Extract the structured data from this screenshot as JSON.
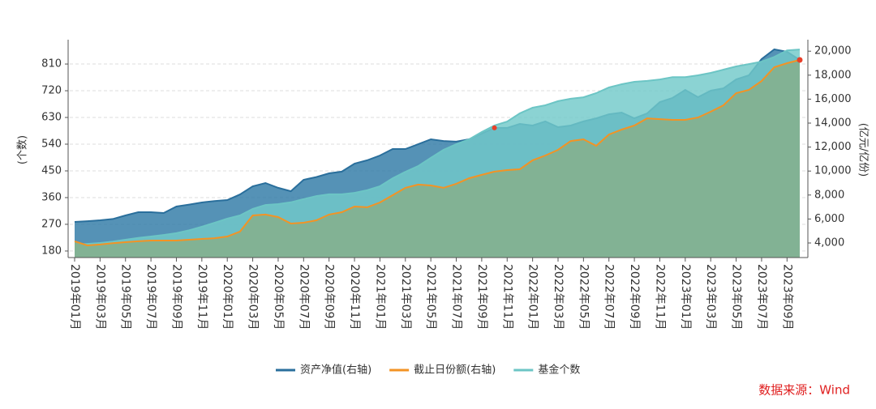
{
  "chart_data": {
    "type": "area",
    "categories": [
      "2019年01月",
      null,
      "2019年03月",
      null,
      "2019年05月",
      null,
      "2019年07月",
      null,
      "2019年09月",
      null,
      "2019年11月",
      null,
      "2020年01月",
      null,
      "2020年03月",
      null,
      "2020年05月",
      null,
      "2020年07月",
      null,
      "2020年09月",
      null,
      "2020年11月",
      null,
      "2021年01月",
      null,
      "2021年03月",
      null,
      "2021年05月",
      null,
      "2021年07月",
      null,
      "2021年09月",
      null,
      "2021年11月",
      null,
      "2022年01月",
      null,
      "2022年03月",
      null,
      "2022年05月",
      null,
      "2022年07月",
      null,
      "2022年09月",
      null,
      "2022年11月",
      null,
      "2023年01月",
      null,
      "2023年03月",
      null,
      "2023年05月",
      null,
      "2023年07月",
      null,
      "2023年09月",
      null
    ],
    "series": [
      {
        "name": "资产净值(右轴)",
        "color": "#2a6f9c",
        "fill": "#2f7aa6",
        "axis": "y2",
        "values": [
          5760,
          5820,
          5890,
          6000,
          6300,
          6570,
          6570,
          6500,
          7040,
          7200,
          7380,
          7500,
          7580,
          8050,
          8730,
          9000,
          8600,
          8320,
          9270,
          9500,
          9810,
          9950,
          10620,
          10900,
          11300,
          11840,
          11840,
          12240,
          12650,
          12510,
          12450,
          12650,
          13120,
          13600,
          13600,
          13930,
          13800,
          14140,
          13660,
          13800,
          14140,
          14400,
          14740,
          14880,
          14400,
          14810,
          15760,
          16100,
          16770,
          16160,
          16700,
          16900,
          17650,
          17990,
          19340,
          20150,
          19950,
          19270
        ]
      },
      {
        "name": "截止日份额(右轴)",
        "color": "#f39324",
        "fill": "#84b191",
        "axis": "y2",
        "values": [
          4140,
          3800,
          3870,
          3990,
          4070,
          4140,
          4200,
          4200,
          4200,
          4270,
          4340,
          4400,
          4540,
          4950,
          6300,
          6370,
          6160,
          5620,
          5690,
          5890,
          6370,
          6570,
          7040,
          6980,
          7380,
          7990,
          8600,
          8870,
          8800,
          8600,
          8940,
          9400,
          9680,
          9950,
          10080,
          10150,
          10900,
          11300,
          11770,
          12510,
          12650,
          12110,
          13050,
          13460,
          13800,
          14400,
          14330,
          14270,
          14270,
          14470,
          14950,
          15490,
          16500,
          16770,
          17510,
          18660,
          19000,
          19270
        ]
      },
      {
        "name": "基金个数",
        "color": "#6cc5c5",
        "fill": "#72c9c9",
        "values": [
          202,
          204,
          207,
          212,
          218,
          224,
          229,
          234,
          240,
          250,
          262,
          275,
          289,
          300,
          322,
          335,
          338,
          344,
          355,
          365,
          371,
          371,
          376,
          385,
          398,
          425,
          447,
          466,
          494,
          521,
          540,
          556,
          581,
          603,
          616,
          644,
          663,
          671,
          685,
          693,
          698,
          712,
          731,
          742,
          750,
          753,
          758,
          766,
          766,
          772,
          780,
          791,
          802,
          810,
          818,
          834,
          856,
          859
        ]
      }
    ],
    "ylabel": "(个数)",
    "y2label": "(亿元/亿份)",
    "ylim": [
      158,
      892
    ],
    "yticks": [
      180,
      270,
      360,
      450,
      540,
      630,
      720,
      810
    ],
    "y2lim": [
      2784,
      20960
    ],
    "y2ticks": [
      {
        "value": 4000,
        "label": "4,000"
      },
      {
        "value": 6000,
        "label": "6,000"
      },
      {
        "value": 8000,
        "label": "8,000"
      },
      {
        "value": 10000,
        "label": "10,000"
      },
      {
        "value": 12000,
        "label": "12,000"
      },
      {
        "value": 14000,
        "label": "14,000"
      },
      {
        "value": 16000,
        "label": "16,000"
      },
      {
        "value": 18000,
        "label": "18,000"
      },
      {
        "value": 20000,
        "label": "20,000"
      }
    ],
    "grid": true,
    "legend": "bottom",
    "source": "数据来源：Wind"
  }
}
